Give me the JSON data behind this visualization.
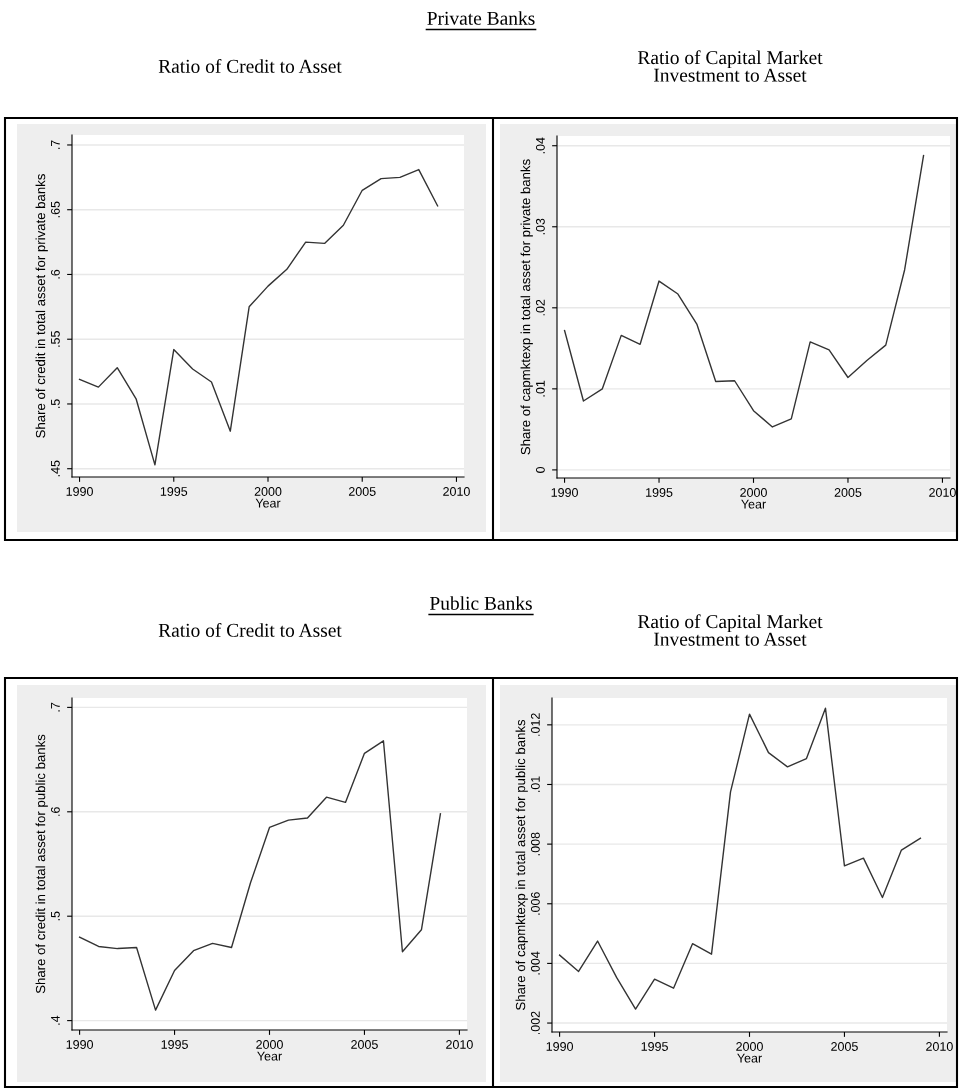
{
  "chart_data": [
    {
      "type": "line",
      "title": "Ratio of Credit to Asset",
      "xlabel": "Year",
      "ylabel": "Share of credit in total asset for private banks",
      "annotations": [
        "Private Banks"
      ],
      "color": "#333333",
      "grid": "y",
      "x": [
        1990,
        1991,
        1992,
        1993,
        1994,
        1995,
        1996,
        1997,
        1998,
        1999,
        2000,
        2001,
        2002,
        2003,
        2004,
        2005,
        2006,
        2007,
        2008,
        2009
      ],
      "values": [
        0.519,
        0.513,
        0.528,
        0.504,
        0.453,
        0.542,
        0.527,
        0.517,
        0.479,
        0.575,
        0.591,
        0.604,
        0.625,
        0.624,
        0.638,
        0.665,
        0.674,
        0.675,
        0.681,
        0.653
      ],
      "xlim": [
        1989.6,
        2010.4
      ],
      "xticks": [
        1990,
        1995,
        2000,
        2005,
        2010
      ],
      "ylim": [
        0.4436,
        0.7077
      ],
      "yticks": [
        {
          "value": 0.45,
          "label": ".45"
        },
        {
          "value": 0.5,
          "label": ".5"
        },
        {
          "value": 0.55,
          "label": ".55"
        },
        {
          "value": 0.6,
          "label": ".6"
        },
        {
          "value": 0.65,
          "label": ".65"
        },
        {
          "value": 0.7,
          "label": ".7"
        }
      ]
    },
    {
      "type": "line",
      "title": "Ratio of Capital Market\nInvestment to Asset",
      "xlabel": "Year",
      "ylabel": "Share of capmktexp in total asset for private banks",
      "color": "#333333",
      "grid": "y",
      "x": [
        1990,
        1991,
        1992,
        1993,
        1994,
        1995,
        1996,
        1997,
        1998,
        1999,
        2000,
        2001,
        2002,
        2003,
        2004,
        2005,
        2006,
        2007,
        2008,
        2009
      ],
      "values": [
        0.0172,
        0.0085,
        0.01,
        0.0166,
        0.0155,
        0.0233,
        0.0217,
        0.018,
        0.0109,
        0.011,
        0.0073,
        0.0053,
        0.0063,
        0.0158,
        0.0148,
        0.0114,
        0.0135,
        0.0154,
        0.0247,
        0.0388
      ],
      "xlim": [
        1989.6,
        2010.4
      ],
      "xticks": [
        1990,
        1995,
        2000,
        2005,
        2010
      ],
      "ylim": [
        -0.001,
        0.0412
      ],
      "yticks": [
        0,
        {
          "value": 0.01,
          "label": ".01"
        },
        {
          "value": 0.02,
          "label": ".02"
        },
        {
          "value": 0.03,
          "label": ".03"
        },
        {
          "value": 0.04,
          "label": ".04"
        }
      ]
    },
    {
      "type": "line",
      "title": "Ratio of Credit to Asset",
      "xlabel": "Year",
      "ylabel": "Share of credit in total asset for public banks",
      "annotations": [
        "Public Banks"
      ],
      "color": "#333333",
      "grid": "y",
      "x": [
        1990,
        1991,
        1992,
        1993,
        1994,
        1995,
        1996,
        1997,
        1998,
        1999,
        2000,
        2001,
        2002,
        2003,
        2004,
        2005,
        2006,
        2007,
        2008,
        2009
      ],
      "values": [
        0.48,
        0.471,
        0.469,
        0.47,
        0.41,
        0.448,
        0.467,
        0.474,
        0.47,
        0.532,
        0.585,
        0.592,
        0.594,
        0.614,
        0.609,
        0.656,
        0.668,
        0.466,
        0.487,
        0.598
      ],
      "xlim": [
        1989.6,
        2010.4
      ],
      "xticks": [
        1990,
        1995,
        2000,
        2005,
        2010
      ],
      "ylim": [
        0.391,
        0.709
      ],
      "yticks": [
        {
          "value": 0.4,
          "label": ".4"
        },
        {
          "value": 0.5,
          "label": ".5"
        },
        {
          "value": 0.6,
          "label": ".6"
        },
        {
          "value": 0.7,
          "label": ".7"
        }
      ]
    },
    {
      "type": "line",
      "title": "Ratio of Capital Market\nInvestment to Asset",
      "xlabel": "Year",
      "ylabel": "Share of capmktexp in total asset for public banks",
      "color": "#333333",
      "grid": "y",
      "x": [
        1990,
        1991,
        1992,
        1993,
        1994,
        1995,
        1996,
        1997,
        1998,
        1999,
        2000,
        2001,
        2002,
        2003,
        2004,
        2005,
        2006,
        2007,
        2008,
        2009
      ],
      "values": [
        0.00428,
        0.00373,
        0.00475,
        0.00353,
        0.00247,
        0.00347,
        0.00317,
        0.00466,
        0.00431,
        0.00975,
        0.01236,
        0.01107,
        0.01059,
        0.01087,
        0.01256,
        0.00727,
        0.00753,
        0.00621,
        0.0078,
        0.0082
      ],
      "xlim": [
        1989.6,
        2010.4
      ],
      "xticks": [
        1990,
        1995,
        2000,
        2005,
        2010
      ],
      "ylim": [
        0.0017,
        0.0129
      ],
      "yticks": [
        {
          "value": 0.002,
          "label": ".002"
        },
        {
          "value": 0.004,
          "label": ".004"
        },
        {
          "value": 0.006,
          "label": ".006"
        },
        {
          "value": 0.008,
          "label": ".008"
        },
        {
          "value": 0.01,
          "label": ".01"
        },
        {
          "value": 0.012,
          "label": ".012"
        }
      ]
    }
  ]
}
